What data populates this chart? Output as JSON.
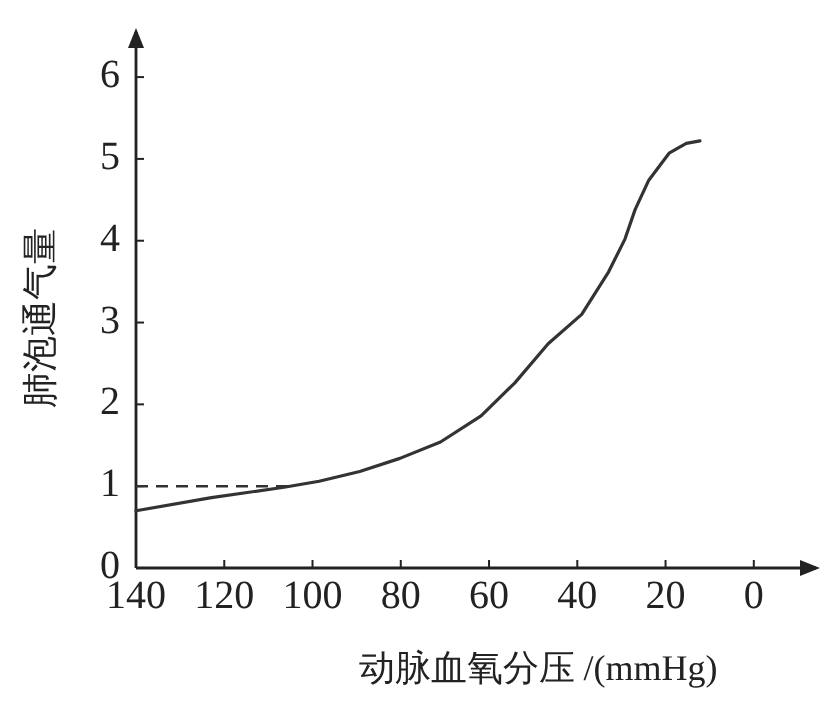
{
  "chart_data": {
    "type": "line",
    "xlabel": "动脉血氧分压 /(mmHg)",
    "ylabel": "肺泡通气量",
    "x": [
      140,
      122.9,
      106.1,
      98.5,
      89.3,
      80.2,
      71.0,
      61.8,
      54.2,
      46.6,
      39,
      32.9,
      29.2,
      26.9,
      23.8,
      19.2,
      15.3,
      12.2
    ],
    "series": [
      {
        "color": "#333333",
        "values": [
          0.7,
          0.86,
          0.99,
          1.06,
          1.18,
          1.34,
          1.54,
          1.86,
          2.26,
          2.74,
          3.1,
          3.62,
          4.02,
          4.38,
          4.74,
          5.07,
          5.19,
          5.22
        ]
      }
    ],
    "xlim": [
      140,
      -15
    ],
    "xticks": [
      140,
      120,
      100,
      80,
      60,
      40,
      20,
      0
    ],
    "ylim": [
      0,
      6.6
    ],
    "yticks": [
      0,
      1,
      2,
      3,
      4,
      5,
      6
    ],
    "ref_lines": [
      {
        "axis": "y",
        "value": 1,
        "line_style": "dashed",
        "color": "#333333"
      }
    ],
    "grid": false,
    "marker": "none",
    "line_style": "solid"
  }
}
